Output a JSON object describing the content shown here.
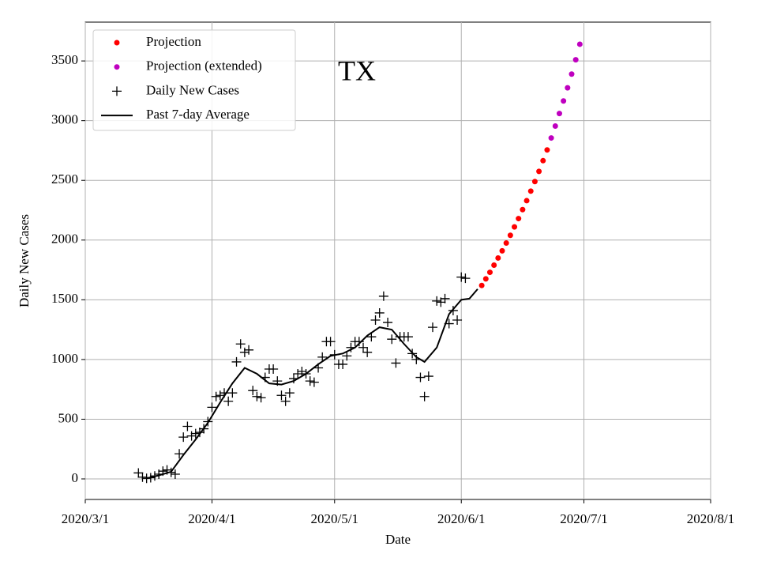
{
  "chart_data": {
    "type": "scatter-line",
    "annotation": "TX",
    "xlabel": "Date",
    "ylabel": "Daily New Cases",
    "xlim": [
      "2020/3/1",
      "2020/8/1"
    ],
    "xticks": [
      "2020/3/1",
      "2020/4/1",
      "2020/5/1",
      "2020/6/1",
      "2020/7/1",
      "2020/8/1"
    ],
    "ylim": [
      -172,
      3825
    ],
    "yticks": [
      0,
      500,
      1000,
      1500,
      2000,
      2500,
      3000,
      3500
    ],
    "grid": true,
    "legend": "upper left",
    "series": [
      {
        "name": "Projection",
        "kind": "dot",
        "color": "#ff0000",
        "x": [
          "2020/6/6",
          "2020/6/7",
          "2020/6/8",
          "2020/6/9",
          "2020/6/10",
          "2020/6/11",
          "2020/6/12",
          "2020/6/13",
          "2020/6/14",
          "2020/6/15",
          "2020/6/16",
          "2020/6/17",
          "2020/6/18",
          "2020/6/19",
          "2020/6/20",
          "2020/6/21",
          "2020/6/22"
        ],
        "values": [
          1620,
          1675,
          1730,
          1790,
          1850,
          1910,
          1975,
          2040,
          2110,
          2180,
          2255,
          2330,
          2410,
          2490,
          2575,
          2665,
          2755
        ]
      },
      {
        "name": "Projection (extended)",
        "kind": "dot",
        "color": "#bf00bf",
        "x": [
          "2020/6/23",
          "2020/6/24",
          "2020/6/25",
          "2020/6/26",
          "2020/6/27",
          "2020/6/28",
          "2020/6/29",
          "2020/6/30"
        ],
        "values": [
          2855,
          2955,
          3060,
          3165,
          3275,
          3390,
          3510,
          3640
        ]
      },
      {
        "name": "Daily New Cases",
        "kind": "plus",
        "color": "#000000",
        "x": [
          "2020/3/14",
          "2020/3/15",
          "2020/3/16",
          "2020/3/17",
          "2020/3/18",
          "2020/3/19",
          "2020/3/20",
          "2020/3/21",
          "2020/3/22",
          "2020/3/23",
          "2020/3/24",
          "2020/3/25",
          "2020/3/26",
          "2020/3/27",
          "2020/3/28",
          "2020/3/29",
          "2020/3/30",
          "2020/3/31",
          "2020/4/1",
          "2020/4/2",
          "2020/4/3",
          "2020/4/4",
          "2020/4/5",
          "2020/4/6",
          "2020/4/7",
          "2020/4/8",
          "2020/4/9",
          "2020/4/10",
          "2020/4/11",
          "2020/4/12",
          "2020/4/13",
          "2020/4/14",
          "2020/4/15",
          "2020/4/16",
          "2020/4/17",
          "2020/4/18",
          "2020/4/19",
          "2020/4/20",
          "2020/4/21",
          "2020/4/22",
          "2020/4/23",
          "2020/4/24",
          "2020/4/25",
          "2020/4/26",
          "2020/4/27",
          "2020/4/28",
          "2020/4/29",
          "2020/4/30",
          "2020/5/1",
          "2020/5/2",
          "2020/5/3",
          "2020/5/4",
          "2020/5/5",
          "2020/5/6",
          "2020/5/7",
          "2020/5/8",
          "2020/5/9",
          "2020/5/10",
          "2020/5/11",
          "2020/5/12",
          "2020/5/13",
          "2020/5/14",
          "2020/5/15",
          "2020/5/16",
          "2020/5/17",
          "2020/5/18",
          "2020/5/19",
          "2020/5/20",
          "2020/5/21",
          "2020/5/22",
          "2020/5/23",
          "2020/5/24",
          "2020/5/25",
          "2020/5/26",
          "2020/5/27",
          "2020/5/28",
          "2020/5/29",
          "2020/5/30",
          "2020/5/31",
          "2020/6/1",
          "2020/6/2"
        ],
        "values": [
          50,
          15,
          5,
          10,
          25,
          40,
          65,
          75,
          55,
          40,
          210,
          350,
          440,
          360,
          380,
          390,
          420,
          480,
          600,
          690,
          700,
          720,
          650,
          720,
          980,
          1130,
          1060,
          1080,
          740,
          690,
          680,
          850,
          920,
          920,
          820,
          700,
          650,
          720,
          840,
          880,
          900,
          880,
          820,
          810,
          930,
          1020,
          1150,
          1150,
          1040,
          960,
          960,
          1030,
          1100,
          1150,
          1150,
          1100,
          1060,
          1190,
          1330,
          1390,
          1530,
          1310,
          1170,
          970,
          1190,
          1190,
          1190,
          1050,
          1000,
          850,
          690,
          860,
          1270,
          1490,
          1480,
          1510,
          1300,
          1410,
          1330,
          1690,
          1680
        ]
      },
      {
        "name": "Past 7-day Average",
        "kind": "line",
        "color": "#000000",
        "x": [
          "2020/3/16",
          "2020/3/19",
          "2020/3/22",
          "2020/3/25",
          "2020/3/28",
          "2020/3/31",
          "2020/4/3",
          "2020/4/6",
          "2020/4/9",
          "2020/4/12",
          "2020/4/15",
          "2020/4/18",
          "2020/4/21",
          "2020/4/24",
          "2020/4/27",
          "2020/4/30",
          "2020/5/3",
          "2020/5/6",
          "2020/5/9",
          "2020/5/12",
          "2020/5/15",
          "2020/5/18",
          "2020/5/21",
          "2020/5/23",
          "2020/5/26",
          "2020/5/29",
          "2020/6/1",
          "2020/6/3",
          "2020/6/5"
        ],
        "values": [
          5,
          30,
          60,
          200,
          330,
          470,
          640,
          800,
          930,
          880,
          800,
          790,
          820,
          880,
          960,
          1030,
          1050,
          1100,
          1200,
          1270,
          1250,
          1130,
          1020,
          980,
          1100,
          1380,
          1500,
          1510,
          1590
        ]
      }
    ]
  }
}
